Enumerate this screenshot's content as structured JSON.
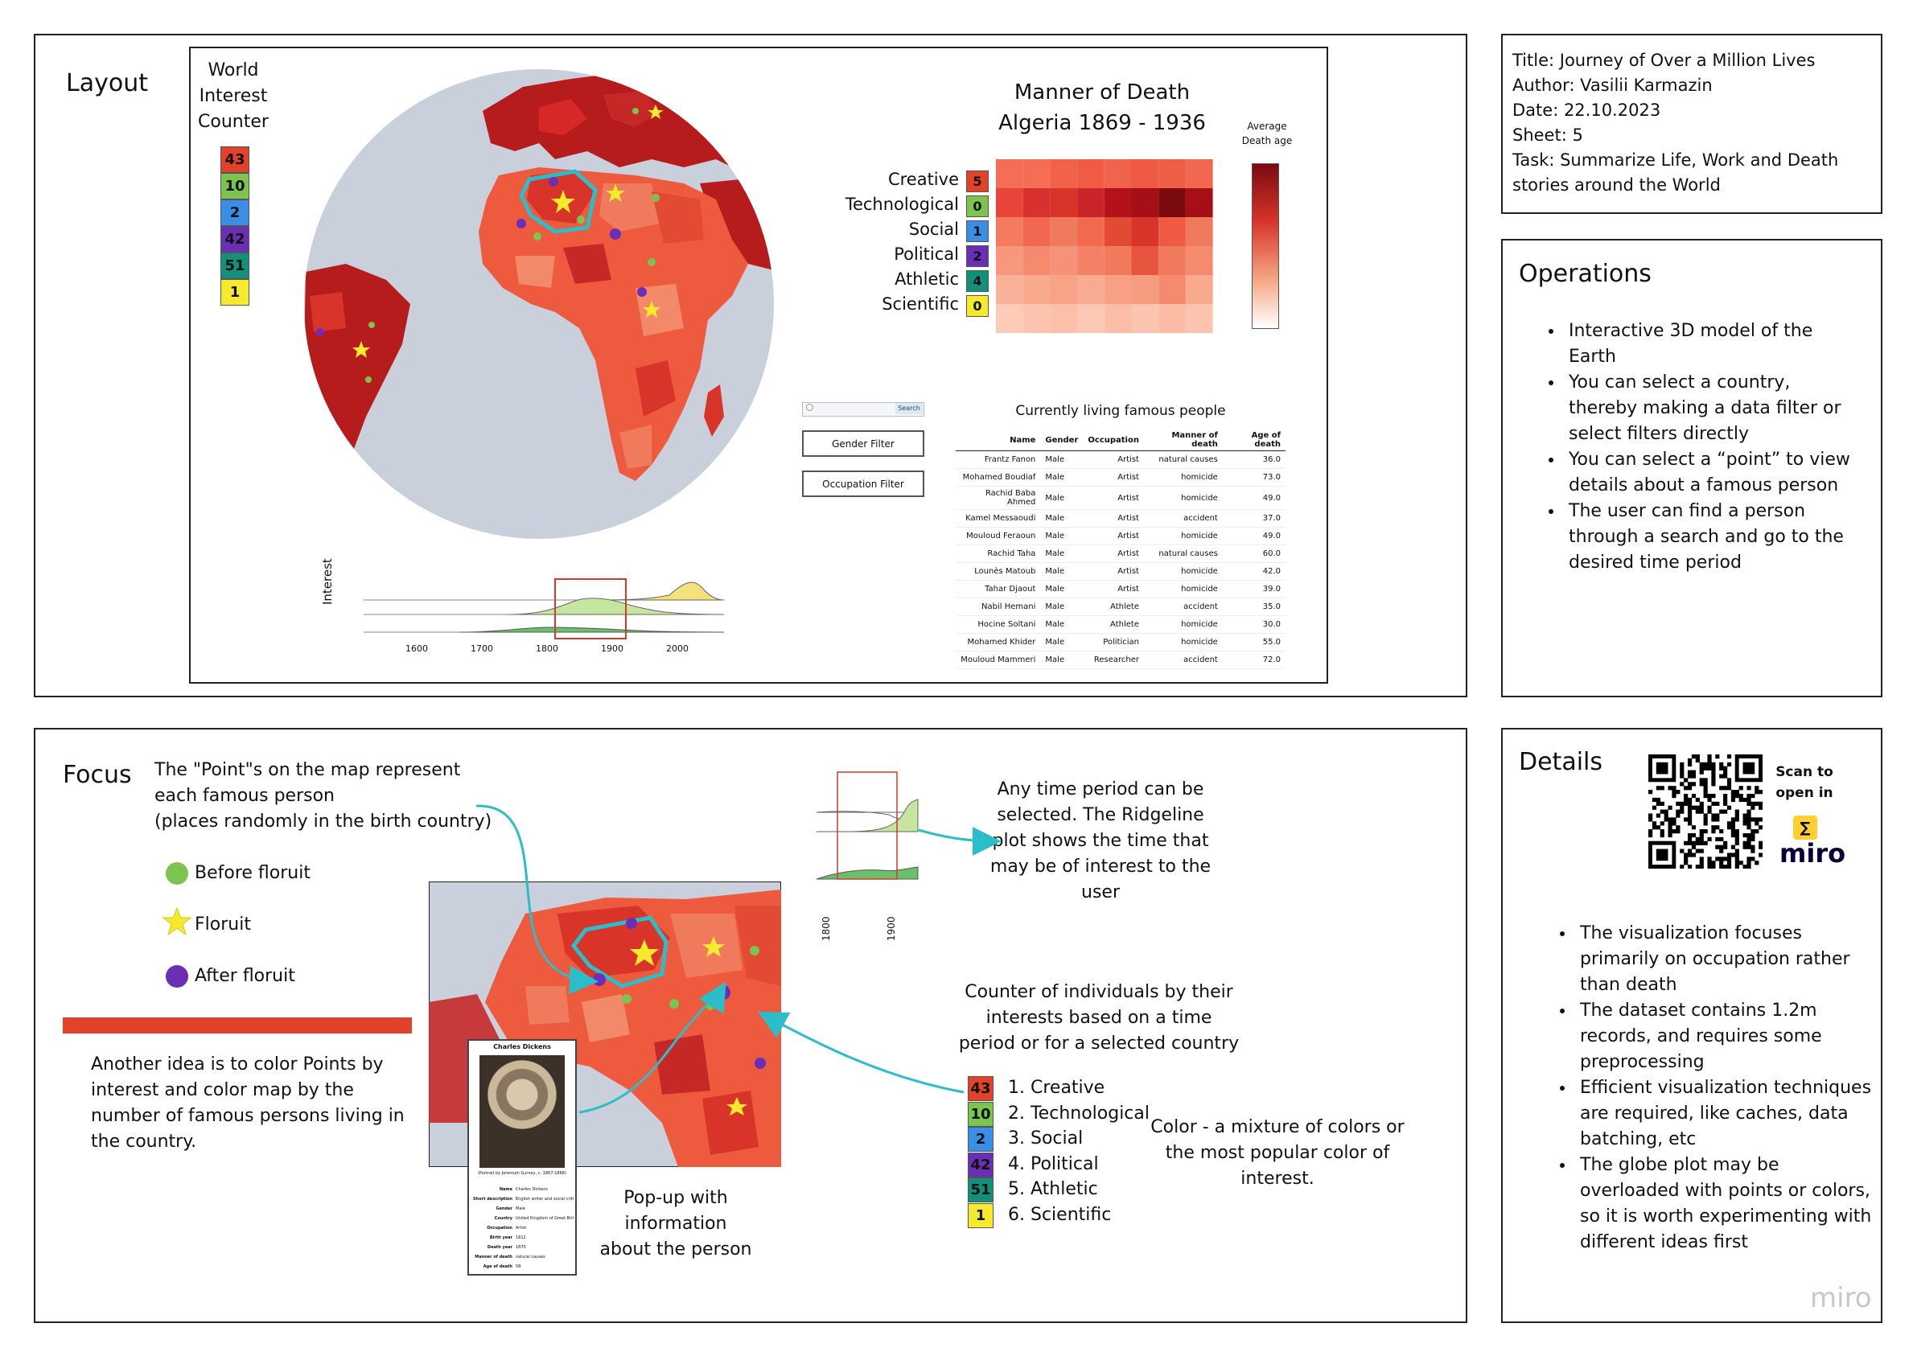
{
  "layout_panel": {
    "title": "Layout",
    "counter_title_lines": [
      "World",
      "Interest",
      "Counter"
    ],
    "counter_values": [
      "43",
      "10",
      "2",
      "42",
      "51",
      "1"
    ],
    "heatmap_title_lines": [
      "Manner of Death",
      "Algeria 1869 - 1936"
    ],
    "heatmap_rows": [
      "Creative",
      "Technological",
      "Social",
      "Political",
      "Athletic",
      "Scientific"
    ],
    "heatmap_counts": [
      "5",
      "0",
      "1",
      "2",
      "4",
      "0"
    ],
    "colorbar_label_lines": [
      "Average",
      "Death age"
    ],
    "search_button": "Search",
    "gender_filter": "Gender Filter",
    "occupation_filter": "Occupation Filter",
    "table_title": "Currently living famous people",
    "table_headers": [
      "Name",
      "Gender",
      "Occupation",
      "Manner of death",
      "Age of death"
    ],
    "table_rows": [
      [
        "Frantz Fanon",
        "Male",
        "Artist",
        "natural causes",
        "36.0"
      ],
      [
        "Mohamed Boudiaf",
        "Male",
        "Artist",
        "homicide",
        "73.0"
      ],
      [
        "Rachid Baba Ahmed",
        "Male",
        "Artist",
        "homicide",
        "49.0"
      ],
      [
        "Kamel Messaoudi",
        "Male",
        "Artist",
        "accident",
        "37.0"
      ],
      [
        "Mouloud Feraoun",
        "Male",
        "Artist",
        "homicide",
        "49.0"
      ],
      [
        "Rachid Taha",
        "Male",
        "Artist",
        "natural causes",
        "60.0"
      ],
      [
        "Lounès Matoub",
        "Male",
        "Artist",
        "homicide",
        "42.0"
      ],
      [
        "Tahar Djaout",
        "Male",
        "Artist",
        "homicide",
        "39.0"
      ],
      [
        "Nabil Hemani",
        "Male",
        "Athlete",
        "accident",
        "35.0"
      ],
      [
        "Hocine Soltani",
        "Male",
        "Athlete",
        "homicide",
        "30.0"
      ],
      [
        "Mohamed Khider",
        "Male",
        "Politician",
        "homicide",
        "55.0"
      ],
      [
        "Mouloud Mammeri",
        "Male",
        "Researcher",
        "accident",
        "72.0"
      ]
    ],
    "ridge_ylabel": "Interest",
    "ridge_ticks": [
      "1600",
      "1700",
      "1800",
      "1900",
      "2000"
    ]
  },
  "info_panel": {
    "lines": [
      "Title: Journey of Over a Million Lives",
      "Author: Vasilii Karmazin",
      "Date: 22.10.2023",
      "Sheet: 5",
      "Task: Summarize Life, Work and Death stories around the World"
    ]
  },
  "operations_panel": {
    "title": "Operations",
    "items": [
      "Interactive 3D model of the Earth",
      "You can select a country, thereby making a data filter or select filters directly",
      "You can select a “point” to view details about a famous person",
      "The user can find a person through a search and go to the desired time period"
    ]
  },
  "focus_panel": {
    "title": "Focus",
    "points_text_lines": [
      "The \"Point\"s on the map represent",
      "each famous person",
      "(places randomly in the birth country)"
    ],
    "legend": [
      "Before floruit",
      "Floruit",
      "After floruit"
    ],
    "idea_text": "Another idea is to color Points by interest and color map by the number of famous persons living in the country.",
    "popup_name": "Charles Dickens",
    "popup_caption": "(Portrait by Jeremiah Gurney, c. 1867-1868)",
    "popup_fields": [
      "Name",
      "Short description",
      "Gender",
      "Country",
      "Occupation",
      "Birth year",
      "Death year",
      "Manner of death",
      "Age of death"
    ],
    "popup_values": [
      "Charles Dickens",
      "English writer and social critic",
      "Male",
      "United Kingdom of Great Britain",
      "Artist",
      "1812",
      "1870",
      "natural causes",
      "58"
    ],
    "popup_text_lines": [
      "Pop-up with",
      "information",
      "about the person"
    ],
    "ridge_ticks": [
      "1800",
      "1900"
    ],
    "time_text_lines": [
      "Any time period can be",
      "selected. The Ridgeline",
      "plot shows the time that",
      "may be of interest to the",
      "user"
    ],
    "counter_text_lines": [
      "Counter of individuals by their",
      "interests based on a time",
      "period or for a selected country"
    ],
    "counter_values": [
      "43",
      "10",
      "2",
      "42",
      "51",
      "1"
    ],
    "counter_labels": [
      "1. Creative",
      "2. Technological",
      "3. Social",
      "4. Political",
      "5. Athletic",
      "6. Scientific"
    ],
    "color_text_lines": [
      "Color - a mixture of colors or",
      "the most popular color of",
      "interest."
    ]
  },
  "details_panel": {
    "title": "Details",
    "scan_lines": [
      "Scan to",
      "open in"
    ],
    "miro_logo": "miro",
    "items": [
      "The visualization focuses primarily on occupation rather than death",
      "The dataset contains 1.2m records, and requires some preprocessing",
      "Efficient visualization techniques are required, like caches, data batching, etc",
      "The globe plot may be overloaded with points or colors, so it is worth experimenting with different ideas first"
    ]
  },
  "watermark": "miro",
  "colors": {
    "creative": "#e0432a",
    "technological": "#7cc44f",
    "social": "#3a8ee6",
    "political": "#6a2fb5",
    "athletic": "#13907a",
    "scientific": "#f6ea2c",
    "country_outline": "#2bbec8"
  }
}
